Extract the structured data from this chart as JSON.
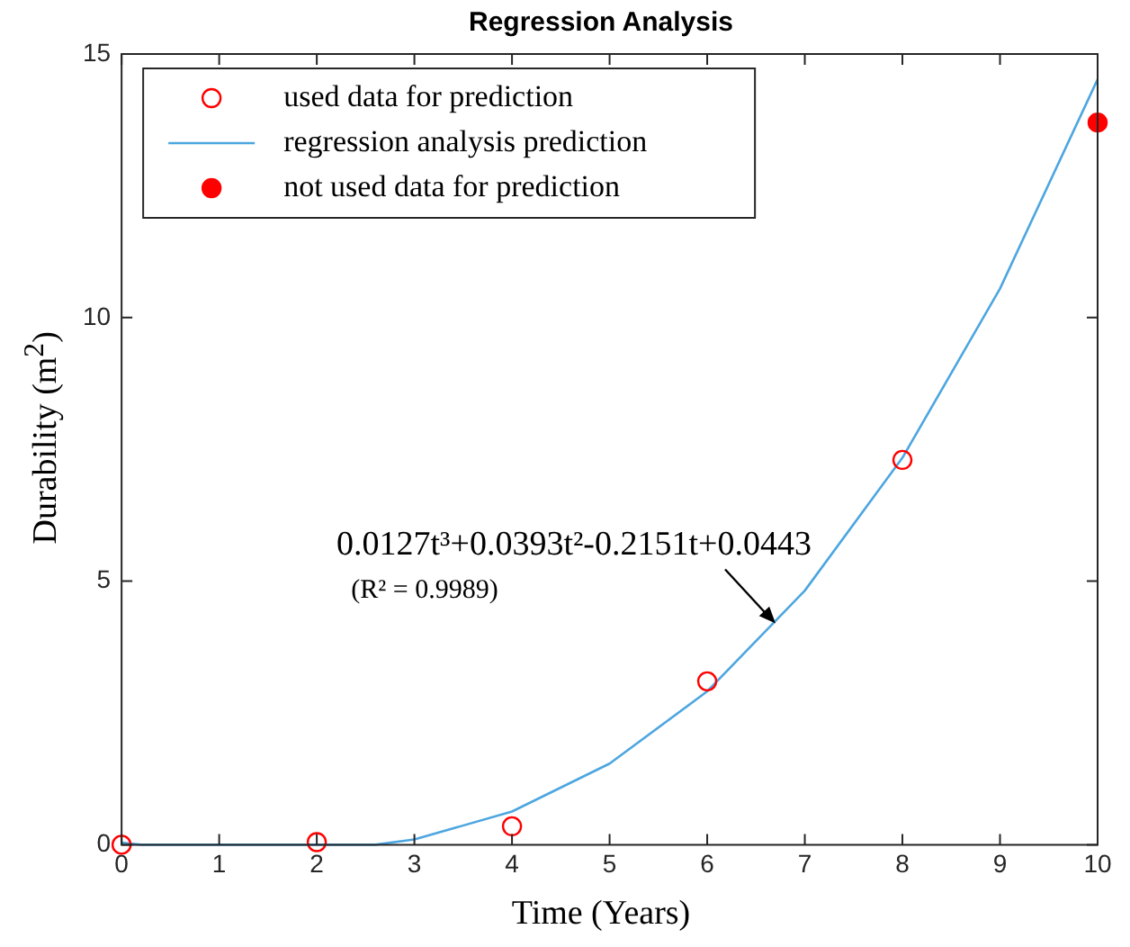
{
  "chart_data": {
    "type": "scatter",
    "title": "Regression Analysis",
    "xlabel": "Time (Years)",
    "ylabel": "Durability (m$^{2}$)",
    "xlim": [
      0,
      10
    ],
    "xticks": [
      0,
      1,
      2,
      3,
      4,
      5,
      6,
      7,
      8,
      9,
      10
    ],
    "ylim": [
      0,
      15
    ],
    "yticks": [
      0,
      5,
      10,
      15
    ],
    "grid": false,
    "legend": "top left",
    "series": [
      {
        "name": "used data for prediction",
        "marker": "circle",
        "color": "#ff0000",
        "x": [
          0,
          2,
          4,
          6,
          8
        ],
        "values": [
          0,
          0.05,
          0.35,
          3.1,
          7.3
        ]
      },
      {
        "name": "regression analysis prediction",
        "type": "line",
        "marker": "none",
        "color": "#4da6e0",
        "x": [
          0,
          0.2,
          2.6,
          3,
          4,
          5,
          6,
          7,
          8,
          9,
          10
        ],
        "values": [
          0.04,
          0,
          0,
          0.1,
          0.63,
          1.54,
          2.91,
          4.82,
          7.34,
          10.55,
          14.52
        ]
      },
      {
        "name": "not used data for prediction",
        "marker": "circle",
        "color": "#ff0000",
        "x": [
          10
        ],
        "values": [
          13.7
        ]
      }
    ],
    "annotations": [
      {
        "text": "0.0127t³+0.0393t²-0.2151t+0.0443",
        "x": 6.7,
        "y": 4.2
      },
      "(R² = 0.9989)"
    ]
  }
}
